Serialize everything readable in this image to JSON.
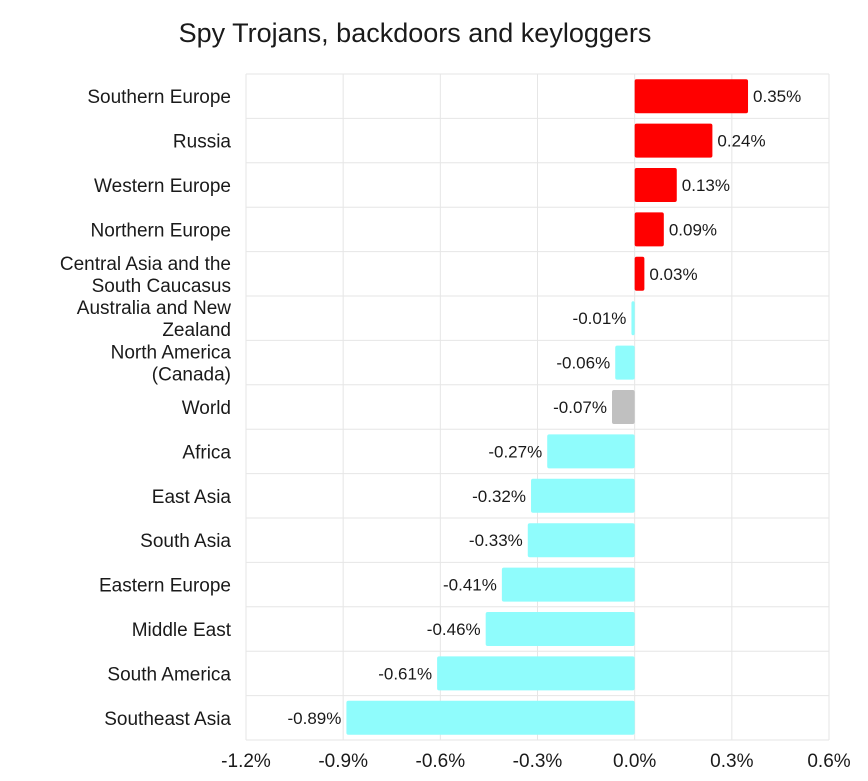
{
  "chart_data": {
    "type": "bar",
    "orientation": "horizontal",
    "title": "Spy Trojans, backdoors and keyloggers",
    "categories": [
      [
        "Southern Europe"
      ],
      [
        "Russia"
      ],
      [
        "Western Europe"
      ],
      [
        "Northern Europe"
      ],
      [
        "Central Asia and the",
        "South Caucasus"
      ],
      [
        "Australia and New",
        "Zealand"
      ],
      [
        "North America",
        "(Canada)"
      ],
      [
        "World"
      ],
      [
        "Africa"
      ],
      [
        "East Asia"
      ],
      [
        "South Asia"
      ],
      [
        "Eastern Europe"
      ],
      [
        "Middle East"
      ],
      [
        "South America"
      ],
      [
        "Southeast Asia"
      ]
    ],
    "values": [
      0.35,
      0.24,
      0.13,
      0.09,
      0.03,
      -0.01,
      -0.06,
      -0.07,
      -0.27,
      -0.32,
      -0.33,
      -0.41,
      -0.46,
      -0.61,
      -0.89
    ],
    "value_labels": [
      "0.35%",
      "0.24%",
      "0.13%",
      "0.09%",
      "0.03%",
      "-0.01%",
      "-0.06%",
      "-0.07%",
      "-0.27%",
      "-0.32%",
      "-0.33%",
      "-0.41%",
      "-0.46%",
      "-0.61%",
      "-0.89%"
    ],
    "highlight_category": "World",
    "xlim": [
      -1.2,
      0.6
    ],
    "xticks": [
      -1.2,
      -0.9,
      -0.6,
      -0.3,
      0.0,
      0.3,
      0.6
    ],
    "xtick_labels": [
      "-1.2%",
      "-0.9%",
      "-0.6%",
      "-0.3%",
      "0.0%",
      "0.3%",
      "0.6%"
    ],
    "grid": true,
    "colors": {
      "positive": "#ff0000",
      "negative": "#8ffcfc",
      "highlight": "#c0c0c0",
      "grid": "#e6e6e6"
    }
  }
}
